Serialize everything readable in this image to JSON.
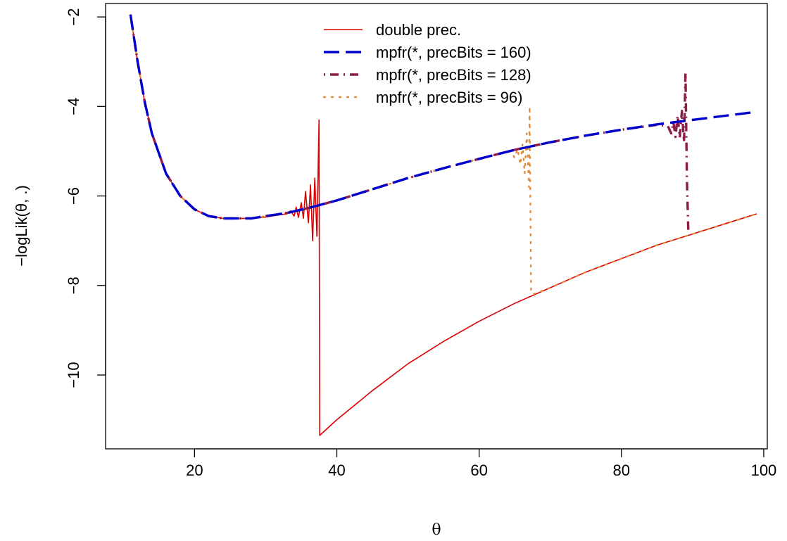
{
  "chart_data": {
    "type": "line",
    "xlabel": "θ",
    "ylabel": "−logLik(θ, .)",
    "xlim": [
      7.5,
      100.5
    ],
    "ylim": [
      -11.65,
      -1.7
    ],
    "x_ticks": [
      20,
      40,
      60,
      80,
      100
    ],
    "x_tick_labels": [
      "20",
      "40",
      "60",
      "80",
      "100"
    ],
    "y_ticks": [
      -10,
      -8,
      -6,
      -4,
      -2
    ],
    "y_tick_labels": [
      "−10",
      "−8",
      "−6",
      "−4",
      "−2"
    ],
    "legend_position": "top-center",
    "series": [
      {
        "name": "double prec.",
        "color": "#dd0000",
        "style": "solid",
        "points": [
          [
            11,
            -1.95
          ],
          [
            12,
            -3.0
          ],
          [
            13,
            -3.9
          ],
          [
            14,
            -4.6
          ],
          [
            16,
            -5.5
          ],
          [
            18,
            -6.0
          ],
          [
            20,
            -6.3
          ],
          [
            22,
            -6.45
          ],
          [
            24,
            -6.5
          ],
          [
            26,
            -6.5
          ],
          [
            28,
            -6.5
          ],
          [
            30,
            -6.47
          ],
          [
            32,
            -6.42
          ],
          [
            33,
            -6.4
          ],
          [
            33.5,
            -6.33
          ],
          [
            34,
            -6.45
          ],
          [
            34.3,
            -6.25
          ],
          [
            34.6,
            -6.48
          ],
          [
            35.0,
            -6.15
          ],
          [
            35.3,
            -6.5
          ],
          [
            35.6,
            -5.9
          ],
          [
            36.0,
            -6.6
          ],
          [
            36.3,
            -5.75
          ],
          [
            36.6,
            -7.0
          ],
          [
            36.9,
            -5.6
          ],
          [
            37.2,
            -6.9
          ],
          [
            37.5,
            -4.3
          ],
          [
            37.6,
            -11.35
          ],
          [
            40,
            -11.0
          ],
          [
            45,
            -10.35
          ],
          [
            50,
            -9.75
          ],
          [
            55,
            -9.25
          ],
          [
            60,
            -8.8
          ],
          [
            65,
            -8.4
          ],
          [
            70,
            -8.05
          ],
          [
            75,
            -7.7
          ],
          [
            80,
            -7.4
          ],
          [
            85,
            -7.1
          ],
          [
            90,
            -6.85
          ],
          [
            95,
            -6.6
          ],
          [
            99,
            -6.4
          ]
        ]
      },
      {
        "name": "mpfr(*, precBits = 160)",
        "color": "#0000cc",
        "style": "dashed",
        "points": [
          [
            11,
            -1.95
          ],
          [
            12,
            -3.0
          ],
          [
            13,
            -3.9
          ],
          [
            14,
            -4.6
          ],
          [
            16,
            -5.5
          ],
          [
            18,
            -6.0
          ],
          [
            20,
            -6.3
          ],
          [
            22,
            -6.45
          ],
          [
            24,
            -6.5
          ],
          [
            26,
            -6.5
          ],
          [
            28,
            -6.5
          ],
          [
            30,
            -6.45
          ],
          [
            33,
            -6.38
          ],
          [
            36,
            -6.27
          ],
          [
            40,
            -6.1
          ],
          [
            45,
            -5.85
          ],
          [
            50,
            -5.6
          ],
          [
            55,
            -5.38
          ],
          [
            60,
            -5.17
          ],
          [
            65,
            -4.97
          ],
          [
            70,
            -4.8
          ],
          [
            75,
            -4.65
          ],
          [
            80,
            -4.52
          ],
          [
            85,
            -4.4
          ],
          [
            90,
            -4.3
          ],
          [
            95,
            -4.2
          ],
          [
            99,
            -4.12
          ]
        ]
      },
      {
        "name": "mpfr(*, precBits = 128)",
        "color": "#8b1c4a",
        "style": "dotdash",
        "points": [
          [
            11,
            -1.95
          ],
          [
            12,
            -3.0
          ],
          [
            13,
            -3.9
          ],
          [
            14,
            -4.6
          ],
          [
            16,
            -5.5
          ],
          [
            18,
            -6.0
          ],
          [
            20,
            -6.3
          ],
          [
            22,
            -6.45
          ],
          [
            24,
            -6.5
          ],
          [
            26,
            -6.5
          ],
          [
            28,
            -6.5
          ],
          [
            30,
            -6.45
          ],
          [
            33,
            -6.38
          ],
          [
            36,
            -6.27
          ],
          [
            40,
            -6.1
          ],
          [
            45,
            -5.85
          ],
          [
            50,
            -5.6
          ],
          [
            55,
            -5.38
          ],
          [
            60,
            -5.17
          ],
          [
            65,
            -4.97
          ],
          [
            70,
            -4.8
          ],
          [
            75,
            -4.65
          ],
          [
            80,
            -4.52
          ],
          [
            85,
            -4.41
          ],
          [
            86.5,
            -4.43
          ],
          [
            87,
            -4.6
          ],
          [
            87.3,
            -4.35
          ],
          [
            87.6,
            -4.68
          ],
          [
            87.9,
            -4.2
          ],
          [
            88.2,
            -4.7
          ],
          [
            88.5,
            -4.1
          ],
          [
            88.8,
            -4.8
          ],
          [
            89.0,
            -3.25
          ],
          [
            89.2,
            -5.6
          ],
          [
            89.4,
            -6.8
          ]
        ]
      },
      {
        "name": "mpfr(*, precBits = 96)",
        "color": "#e08c3c",
        "style": "dotted",
        "points": [
          [
            11,
            -1.95
          ],
          [
            12,
            -3.0
          ],
          [
            13,
            -3.9
          ],
          [
            14,
            -4.6
          ],
          [
            16,
            -5.5
          ],
          [
            18,
            -6.0
          ],
          [
            20,
            -6.3
          ],
          [
            22,
            -6.45
          ],
          [
            24,
            -6.5
          ],
          [
            26,
            -6.5
          ],
          [
            28,
            -6.5
          ],
          [
            30,
            -6.45
          ],
          [
            33,
            -6.38
          ],
          [
            36,
            -6.27
          ],
          [
            40,
            -6.1
          ],
          [
            45,
            -5.85
          ],
          [
            50,
            -5.6
          ],
          [
            55,
            -5.38
          ],
          [
            60,
            -5.17
          ],
          [
            64.5,
            -5.0
          ],
          [
            65.0,
            -5.15
          ],
          [
            65.4,
            -4.95
          ],
          [
            65.8,
            -5.3
          ],
          [
            66.1,
            -4.85
          ],
          [
            66.4,
            -5.5
          ],
          [
            66.7,
            -4.6
          ],
          [
            67.0,
            -5.8
          ],
          [
            67.1,
            -4.0
          ],
          [
            67.3,
            -8.1
          ],
          [
            67.5,
            -8.2
          ],
          [
            70,
            -8.05
          ],
          [
            75,
            -7.7
          ],
          [
            80,
            -7.4
          ],
          [
            85,
            -7.1
          ],
          [
            90,
            -6.85
          ],
          [
            95,
            -6.6
          ],
          [
            99,
            -6.4
          ]
        ]
      }
    ]
  }
}
